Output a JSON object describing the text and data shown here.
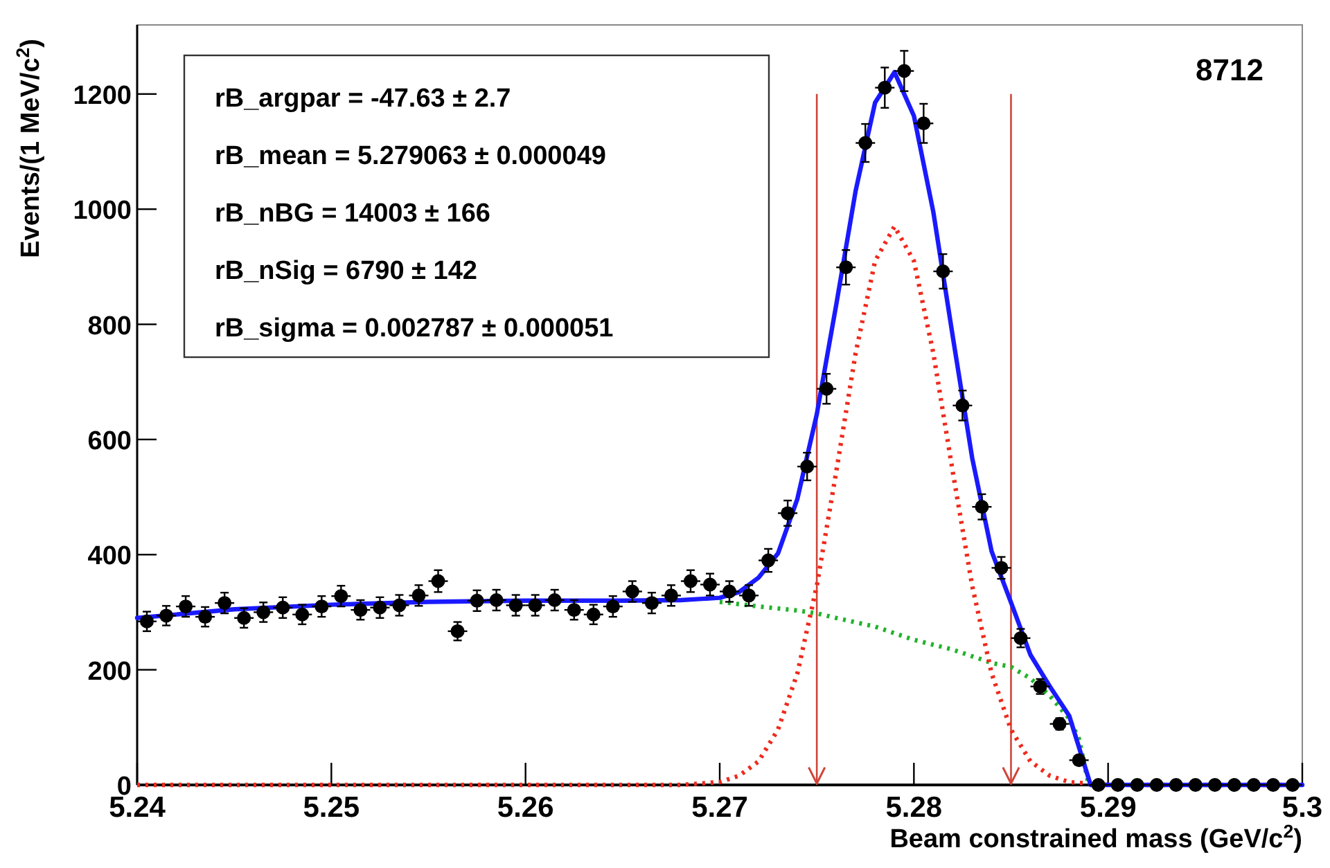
{
  "chart_data": {
    "type": "scatter",
    "xlabel": "Beam constrained mass (GeV/c$^{2}$)",
    "ylabel": "Events/(1 MeV/c$^{2}$)",
    "xlim": [
      5.24,
      5.3
    ],
    "xticks": [
      5.24,
      5.25,
      5.26,
      5.27,
      5.28,
      5.29,
      5.3
    ],
    "ylim": [
      0,
      1320
    ],
    "yticks": [
      0,
      200,
      400,
      600,
      800,
      1000,
      1200
    ],
    "grid": false,
    "marker": "circle",
    "annotations": [
      "rB_argpar = -47.63 ± 2.7",
      "rB_mean =  5.279063 ± 0.000049",
      "rB_nBG =  14003 ± 166",
      "rB_nSig =  6790 ± 142",
      "rB_sigma =  0.002787 ± 0.000051",
      "8712"
    ],
    "ref_lines": [
      {
        "axis": "x",
        "value": 5.275,
        "color": "#d0453a"
      },
      {
        "axis": "x",
        "value": 5.285,
        "color": "#d0453a"
      }
    ],
    "series": [
      {
        "type": "line",
        "color": "#22b22a",
        "line_style": "dotted",
        "marker": "none",
        "x": [
          5.27,
          5.272,
          5.274,
          5.275,
          5.276,
          5.278,
          5.28,
          5.282,
          5.284,
          5.285,
          5.286,
          5.287,
          5.288,
          5.2885,
          5.289
        ],
        "values": [
          318,
          310,
          303,
          298,
          290,
          275,
          252,
          235,
          212,
          205,
          185,
          155,
          115,
          80,
          0
        ]
      },
      {
        "type": "line",
        "color": "#ee2a1c",
        "line_style": "dotted",
        "marker": "none",
        "x": [
          5.24,
          5.268,
          5.27,
          5.271,
          5.272,
          5.273,
          5.274,
          5.275,
          5.276,
          5.277,
          5.278,
          5.279,
          5.28,
          5.281,
          5.282,
          5.283,
          5.284,
          5.285,
          5.286,
          5.287,
          5.288,
          5.29,
          5.3
        ],
        "values": [
          0,
          0,
          5,
          16,
          41,
          96,
          194,
          346,
          544,
          750,
          910,
          970,
          910,
          750,
          544,
          346,
          194,
          96,
          41,
          16,
          5,
          0,
          0
        ]
      },
      {
        "type": "line",
        "color": "#1a1aff",
        "line_style": "solid",
        "marker": "none",
        "x": [
          5.24,
          5.245,
          5.25,
          5.255,
          5.26,
          5.265,
          5.268,
          5.27,
          5.271,
          5.272,
          5.273,
          5.274,
          5.275,
          5.276,
          5.277,
          5.278,
          5.279,
          5.28,
          5.281,
          5.282,
          5.283,
          5.284,
          5.285,
          5.286,
          5.287,
          5.288,
          5.2891,
          5.3
        ],
        "values": [
          290,
          305,
          313,
          318,
          320,
          320,
          321,
          325,
          335,
          360,
          402,
          497,
          644,
          834,
          1032,
          1185,
          1238,
          1162,
          995,
          779,
          568,
          406,
          317,
          226,
          171,
          120,
          0,
          0
        ]
      },
      {
        "color": "#000000",
        "x": [
          5.2405,
          5.2415,
          5.2425,
          5.2435,
          5.2445,
          5.2455,
          5.2465,
          5.2475,
          5.2485,
          5.2495,
          5.2505,
          5.2515,
          5.2525,
          5.2535,
          5.2545,
          5.2555,
          5.2565,
          5.2575,
          5.2585,
          5.2595,
          5.2605,
          5.2615,
          5.2625,
          5.2635,
          5.2645,
          5.2655,
          5.2665,
          5.2675,
          5.2685,
          5.2695,
          5.2705,
          5.2715,
          5.2725,
          5.2735,
          5.2745,
          5.2755,
          5.2765,
          5.2775,
          5.2785,
          5.2795,
          5.2805,
          5.2815,
          5.2825,
          5.2835,
          5.2845,
          5.2855,
          5.2865,
          5.2875,
          5.2885,
          5.2895,
          5.2905,
          5.2915,
          5.2925,
          5.2935,
          5.2945,
          5.2955,
          5.2965,
          5.2975,
          5.2985,
          5.2995
        ],
        "values": [
          284,
          294,
          310,
          292,
          316,
          290,
          300,
          308,
          296,
          310,
          328,
          304,
          308,
          312,
          329,
          354,
          267,
          320,
          321,
          312,
          312,
          321,
          304,
          296,
          310,
          336,
          316,
          329,
          354,
          348,
          336,
          329,
          390,
          472,
          553,
          688,
          899,
          1115,
          1211,
          1240,
          1149,
          892,
          659,
          483,
          377,
          255,
          171,
          106,
          43,
          0,
          0,
          0,
          0,
          0,
          0,
          0,
          0,
          0,
          0,
          0
        ],
        "errors": [
          17,
          17,
          18,
          17,
          18,
          17,
          17,
          18,
          17,
          18,
          18,
          17,
          18,
          18,
          18,
          19,
          16,
          18,
          18,
          18,
          18,
          18,
          17,
          17,
          18,
          18,
          18,
          18,
          19,
          19,
          18,
          18,
          20,
          22,
          24,
          26,
          30,
          33,
          35,
          35,
          34,
          30,
          26,
          22,
          19,
          16,
          13,
          10,
          7,
          null,
          null,
          null,
          null,
          null,
          null,
          null,
          null,
          null,
          null,
          null
        ],
        "xerrors": [
          0.0005,
          0.0005,
          0.0005,
          0.0005,
          0.0005,
          0.0005,
          0.0005,
          0.0005,
          0.0005,
          0.0005,
          0.0005,
          0.0005,
          0.0005,
          0.0005,
          0.0005,
          0.0005,
          0.0005,
          0.0005,
          0.0005,
          0.0005,
          0.0005,
          0.0005,
          0.0005,
          0.0005,
          0.0005,
          0.0005,
          0.0005,
          0.0005,
          0.0005,
          0.0005,
          0.0005,
          0.0005,
          0.0005,
          0.0005,
          0.0005,
          0.0005,
          0.0005,
          0.0005,
          0.0005,
          0.0005,
          0.0005,
          0.0005,
          0.0005,
          0.0005,
          0.0005,
          0.0005,
          0.0005,
          0.0005,
          0.0005,
          0.0005,
          0.0005,
          0.0005,
          0.0005,
          0.0005,
          0.0005,
          0.0005,
          0.0005,
          0.0005,
          0.0005,
          0.0005
        ]
      }
    ]
  }
}
